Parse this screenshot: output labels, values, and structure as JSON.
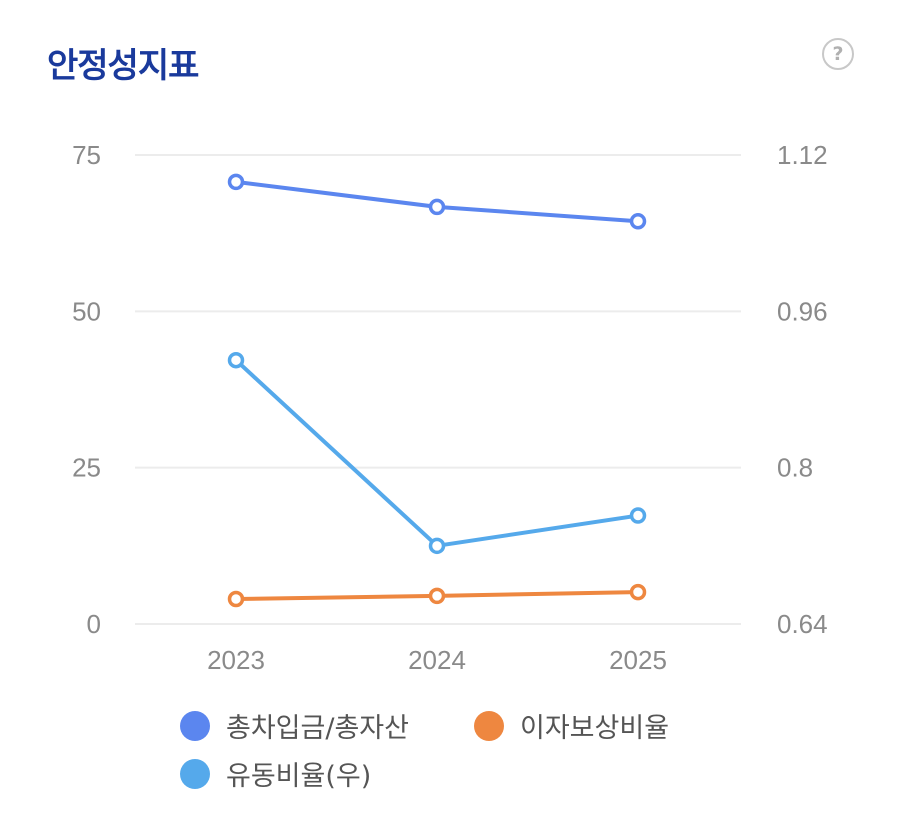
{
  "header": {
    "title": "안정성지표",
    "help_icon": "?"
  },
  "colors": {
    "title": "#1a3a9c",
    "series_debt": "#5b86ef",
    "series_interest": "#ee8740",
    "series_liquidity": "#55a9eb",
    "grid": "#ececec",
    "tick": "#8a8a8a"
  },
  "chart_data": {
    "type": "line",
    "title": "안정성지표",
    "categories": [
      "2023",
      "2024",
      "2025"
    ],
    "y_left": {
      "ticks": [
        "0",
        "25",
        "50",
        "75"
      ],
      "range": [
        0,
        75
      ]
    },
    "y_right": {
      "ticks": [
        "0.64",
        "0.8",
        "0.96",
        "1.12"
      ],
      "range": [
        0.64,
        1.12
      ]
    },
    "series": [
      {
        "name": "총차입금/총자산",
        "axis": "left",
        "color": "#5b86ef",
        "values": [
          70.7,
          66.7,
          64.4
        ]
      },
      {
        "name": "이자보상비율",
        "axis": "left",
        "color": "#ee8740",
        "values": [
          4.0,
          4.5,
          5.1
        ]
      },
      {
        "name": "유동비율(우)",
        "axis": "right",
        "color": "#55a9eb",
        "values": [
          0.91,
          0.72,
          0.751
        ]
      }
    ],
    "grid": true,
    "legend_position": "bottom"
  },
  "legend": [
    {
      "label": "총차입금/총자산",
      "color": "#5b86ef"
    },
    {
      "label": "이자보상비율",
      "color": "#ee8740"
    },
    {
      "label": "유동비율(우)",
      "color": "#55a9eb"
    }
  ]
}
